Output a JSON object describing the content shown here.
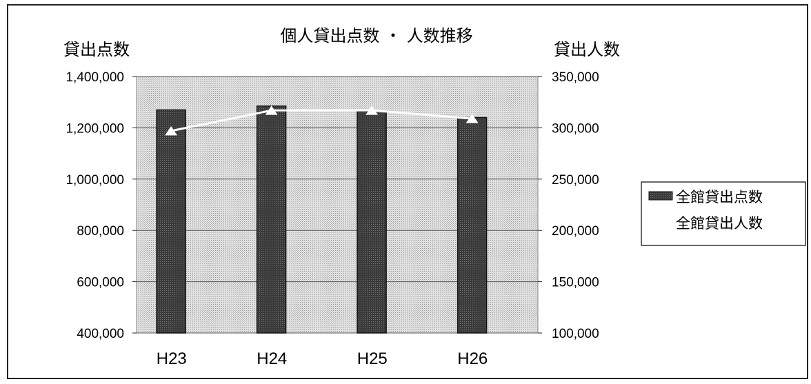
{
  "chart_data": {
    "type": "bar",
    "title": "個人貸出点数 ・ 人数推移",
    "ylabel_left": "貸出点数",
    "ylabel_right": "貸出人数",
    "categories": [
      "H23",
      "H24",
      "H25",
      "H26"
    ],
    "left_axis": {
      "ylim": [
        400000,
        1400000
      ],
      "ticks": [
        "400,000",
        "600,000",
        "800,000",
        "1,000,000",
        "1,200,000",
        "1,400,000"
      ],
      "tick_values": [
        400000,
        600000,
        800000,
        1000000,
        1200000,
        1400000
      ]
    },
    "right_axis": {
      "ylim": [
        100000,
        350000
      ],
      "ticks": [
        "100,000",
        "150,000",
        "200,000",
        "250,000",
        "300,000",
        "350,000"
      ],
      "tick_values": [
        100000,
        150000,
        200000,
        250000,
        300000,
        350000
      ]
    },
    "series": [
      {
        "name": "全館貸出点数",
        "type": "bar",
        "axis": "left",
        "values": [
          1270000,
          1285000,
          1265000,
          1240000
        ]
      },
      {
        "name": "全館貸出人数",
        "type": "line",
        "axis": "right",
        "values": [
          297000,
          317000,
          317000,
          309000
        ]
      }
    ],
    "grid": true,
    "legend_position": "right",
    "colors": {
      "bar": "#333333",
      "plot_bg": "#d4d4d4",
      "line": "#ffffff"
    }
  }
}
